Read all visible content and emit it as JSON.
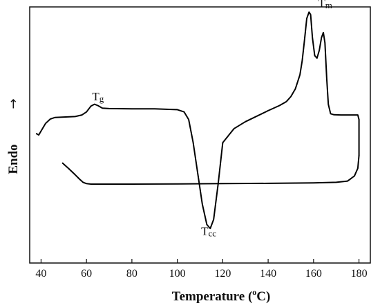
{
  "chart_data": {
    "type": "line",
    "title": "",
    "xlabel_main": "Temperature (",
    "xlabel_sup": "o",
    "xlabel_unit": "C)",
    "ylabel": "Endo",
    "y_arrow": "→",
    "xlim": [
      35,
      185
    ],
    "ylim": [
      0,
      100
    ],
    "x_ticks": [
      40,
      60,
      80,
      100,
      120,
      140,
      160,
      180
    ],
    "grid": false,
    "legend": "none",
    "series": [
      {
        "x": [
          38,
          39,
          40,
          42,
          44,
          46,
          50,
          55,
          58,
          60,
          62,
          63.5,
          65,
          67,
          70,
          80,
          90,
          100,
          103,
          105,
          107,
          109,
          111,
          113,
          114.5,
          116,
          118,
          120,
          125,
          130,
          140,
          145,
          148,
          150,
          152,
          154,
          155,
          156,
          157,
          158,
          158.7,
          159.5,
          160.5,
          161.5,
          162.5,
          163.5,
          164.3,
          165,
          165.8,
          166.5,
          167.5,
          169,
          172,
          176,
          179.5,
          180,
          180,
          180
        ],
        "y": [
          50.5,
          50,
          51.5,
          54.5,
          56.2,
          56.8,
          57,
          57.2,
          57.8,
          59,
          61.3,
          62,
          61.5,
          60.5,
          60.3,
          60.2,
          60.2,
          59.9,
          59,
          56,
          47,
          35,
          23,
          15,
          13.5,
          17,
          31,
          47,
          52.5,
          55.2,
          59.5,
          61.5,
          63,
          65,
          68,
          73.5,
          79,
          87,
          95.5,
          98,
          97,
          88,
          81,
          80,
          83,
          88,
          90,
          86,
          72,
          62,
          58.3,
          57.9,
          57.8,
          57.8,
          57.8,
          56,
          50,
          42
        ]
      },
      {
        "x": [
          49.5,
          52,
          55,
          57,
          58.5,
          60,
          62,
          70,
          80,
          100,
          120,
          140,
          160,
          170,
          175,
          178,
          179.5,
          180
        ],
        "y": [
          39,
          37,
          34.5,
          32.7,
          31.5,
          31,
          30.8,
          30.8,
          30.8,
          30.9,
          31,
          31.1,
          31.3,
          31.5,
          32,
          34,
          37,
          42
        ]
      }
    ],
    "annotations": [
      {
        "label": "Tg",
        "main": "T",
        "sub": "g",
        "x": 62.5,
        "y": 63.5
      },
      {
        "label": "Tcc",
        "main": "T",
        "sub": "cc",
        "x": 110.5,
        "y": 11
      },
      {
        "label": "Tm",
        "main": "T",
        "sub": "m",
        "x": 162,
        "y": 100
      }
    ]
  }
}
